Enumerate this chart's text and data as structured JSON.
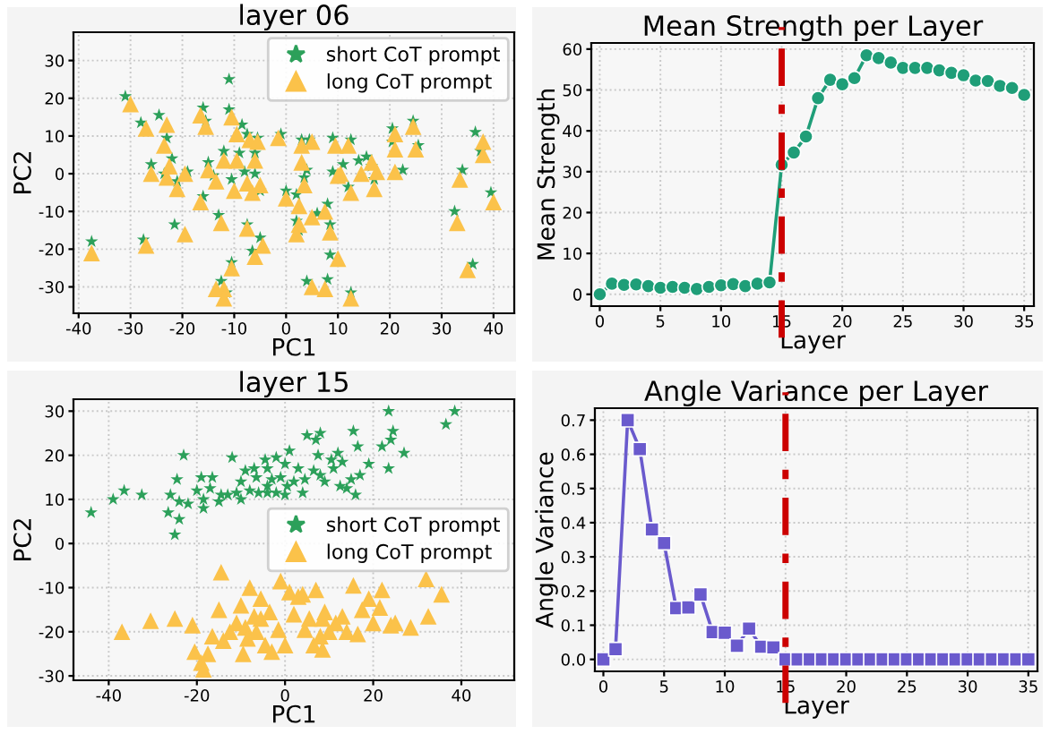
{
  "chart_data": [
    {
      "type": "scatter",
      "title": "layer 06",
      "xlabel": "PC1",
      "ylabel": "PC2",
      "xlim": [
        -41,
        44
      ],
      "ylim": [
        -37,
        37.5
      ],
      "xticks": [
        -40,
        -30,
        -20,
        -10,
        0,
        10,
        20,
        30,
        40
      ],
      "yticks": [
        -30,
        -20,
        -10,
        0,
        10,
        20,
        30
      ],
      "grid": true,
      "legend": "top right",
      "series": [
        {
          "name": "short CoT prompt",
          "color": "#2ca05a",
          "marker": "star",
          "x": [
            -37.5,
            -31,
            -28,
            -24.5,
            -23,
            -26,
            -22,
            -23.5,
            -21,
            -19,
            -16,
            -15.5,
            -15,
            -14,
            -16,
            -13,
            -12,
            -11,
            -9,
            -8.5,
            -7.5,
            -8,
            -10.5,
            -6,
            -5.5,
            -6,
            -5,
            -7.5,
            -5,
            -6.5,
            -10.5,
            -11,
            -12.5,
            -11.5,
            -1,
            0,
            3,
            2,
            3.5,
            4,
            4.5,
            2,
            2.5,
            6,
            4,
            8,
            8.5,
            8.5,
            8,
            9,
            9,
            11,
            12.5,
            12,
            12.5,
            14,
            15.5,
            17,
            16.5,
            20.5,
            20.5,
            22.5,
            24.5,
            25.5,
            32.5,
            34,
            36,
            36.5,
            37.5,
            39.5,
            -27.5,
            -21.5
          ],
          "values": [
            -18,
            20.5,
            13.5,
            15.5,
            9.5,
            2.5,
            4,
            0,
            -2,
            0.5,
            17.5,
            14,
            3,
            -0.5,
            -6,
            -11,
            6,
            17,
            5.5,
            13,
            10.5,
            0.5,
            -1.5,
            5.5,
            9.5,
            0,
            -4.5,
            -13.5,
            -17,
            -20.5,
            -23.5,
            25,
            -28.5,
            -31.5,
            10.5,
            -4.5,
            9,
            -5.5,
            -1,
            1,
            9,
            -12.5,
            -15,
            -10.5,
            -28.5,
            -8,
            -13.5,
            -21.5,
            -28,
            0.5,
            9.5,
            2.5,
            9,
            -3.5,
            -31.5,
            3.5,
            4.5,
            -1.5,
            2,
            12,
            8.5,
            1,
            14,
            7.5,
            -10,
            1,
            -24,
            11,
            6,
            -5,
            -17.5,
            -13.5
          ]
        },
        {
          "name": "long CoT prompt",
          "color": "#fbc24a",
          "marker": "triangle",
          "x": [
            -37.5,
            -30,
            -27,
            -23,
            -23.5,
            -26,
            -22.5,
            -23,
            -21,
            -19.5,
            -16.5,
            -15.5,
            -15,
            -13.5,
            -16.5,
            -12.5,
            -12,
            -10.5,
            -9.5,
            -9.5,
            -7,
            -7.5,
            -10,
            -6,
            -5.5,
            -6.5,
            -5,
            -7.5,
            -4.5,
            -6,
            -10.5,
            -12,
            -13.5,
            -12,
            -1.5,
            0,
            3,
            2.5,
            3.5,
            3,
            5,
            2.5,
            2,
            5,
            5,
            7.5,
            8.5,
            10,
            7.5,
            10,
            9.5,
            10.5,
            12,
            12.5,
            12.5,
            14.5,
            16.5,
            17,
            17.5,
            21,
            21,
            21,
            24.5,
            25,
            33,
            33.5,
            35,
            38,
            38,
            40,
            -27,
            -19.5
          ],
          "values": [
            -21,
            18.5,
            12,
            13,
            7.5,
            0,
            2,
            -1,
            -4,
            0,
            15.5,
            12.5,
            1,
            -2,
            -7.5,
            -13,
            3.5,
            15,
            3.5,
            10.5,
            9,
            -2.5,
            -4.5,
            3.5,
            8.5,
            -5,
            -3,
            -14.5,
            -19,
            -22,
            -25,
            -30.5,
            -30.5,
            -33,
            9.5,
            -6.5,
            7.5,
            -8.5,
            -3,
            3,
            8.5,
            -13.5,
            -16,
            -11.5,
            -30,
            -10,
            -15.5,
            -22.5,
            -30.5,
            -0.5,
            7.5,
            0,
            7.5,
            -5,
            -33,
            0,
            3,
            -4,
            0.5,
            10.5,
            6.5,
            0.5,
            12.5,
            6.5,
            -13,
            -1.5,
            -25.5,
            8.5,
            5,
            -7.5,
            -19,
            -16
          ]
        }
      ]
    },
    {
      "type": "line",
      "title": "Mean Strength per Layer",
      "xlabel": "Layer",
      "ylabel": "Mean Strength",
      "xlim": [
        -0.7,
        35.8
      ],
      "ylim": [
        -2.9,
        61.5
      ],
      "xticks": [
        0,
        5,
        10,
        15,
        20,
        25,
        30,
        35
      ],
      "yticks": [
        0,
        10,
        20,
        30,
        40,
        50,
        60
      ],
      "grid": true,
      "marker": "circle",
      "line_style": "solid",
      "x": [
        0,
        1,
        2,
        3,
        4,
        5,
        6,
        7,
        8,
        9,
        10,
        11,
        12,
        13,
        14,
        15,
        16,
        17,
        18,
        19,
        20,
        21,
        22,
        23,
        24,
        25,
        26,
        27,
        28,
        29,
        30,
        31,
        32,
        33,
        34,
        35
      ],
      "series": [
        {
          "color": "#1f9e78",
          "values": [
            0,
            2.6,
            2.3,
            2.4,
            2,
            1.6,
            1.8,
            1.6,
            1.3,
            1.8,
            2.2,
            2.5,
            2,
            2.6,
            2.9,
            31.7,
            34.7,
            38.6,
            48,
            52.5,
            51.4,
            52.9,
            58.5,
            57.8,
            56.7,
            55.4,
            55.4,
            55.4,
            54.8,
            54.2,
            53.6,
            52.3,
            52.2,
            51,
            50.5,
            48.8
          ]
        }
      ],
      "ref_lines": [
        {
          "axis": "x",
          "value": 15,
          "color": "#cc0000",
          "line_style": "dashdot"
        }
      ]
    },
    {
      "type": "scatter",
      "title": "layer 15",
      "xlabel": "PC1",
      "ylabel": "PC2",
      "xlim": [
        -48,
        52
      ],
      "ylim": [
        -31,
        32.7
      ],
      "xticks": [
        -40,
        -20,
        0,
        20,
        40
      ],
      "yticks": [
        -30,
        -20,
        -10,
        0,
        10,
        20,
        30
      ],
      "grid": true,
      "legend": "right",
      "series": [
        {
          "name": "short CoT prompt",
          "color": "#2ca05a",
          "marker": "star",
          "x": [
            -44,
            -39,
            -36.5,
            -32.5,
            -26.5,
            -26,
            -25,
            -24.5,
            -24,
            -24,
            -23,
            -22,
            -20,
            -19,
            -18.5,
            -18.5,
            -17,
            -16.5,
            -15,
            -14.5,
            -13,
            -12,
            -11,
            -10,
            -10,
            -9,
            -8,
            -7,
            -6.5,
            -6,
            -4.5,
            -4,
            -4,
            -4,
            -3,
            -2,
            -2,
            -1,
            0,
            1,
            0.5,
            0,
            2,
            3,
            4,
            4.5,
            5,
            6.5,
            7,
            7.5,
            8,
            8,
            9,
            10.5,
            11,
            12,
            12.5,
            13,
            14,
            15,
            15.5,
            16,
            16.5,
            17,
            19,
            22,
            23.5,
            23.5,
            24,
            24.5,
            27,
            36.5,
            38.5
          ],
          "values": [
            7,
            10,
            12,
            11,
            7,
            11,
            2,
            14.5,
            9.5,
            5.5,
            20,
            9,
            12,
            15,
            10,
            8,
            12.5,
            15,
            9.5,
            11,
            11,
            19.5,
            11.5,
            14,
            10,
            16.5,
            12,
            17,
            15,
            11.5,
            19,
            17,
            13,
            11.5,
            14.5,
            19.5,
            11.5,
            15,
            18,
            21,
            13,
            11,
            14,
            17,
            11.5,
            14.5,
            24.5,
            16.5,
            23.5,
            20,
            25,
            15.5,
            14,
            19,
            17,
            20.5,
            13,
            18.5,
            12.5,
            14.5,
            25.5,
            11,
            22,
            15.5,
            18,
            22,
            30,
            17,
            23.5,
            25.5,
            20.5,
            27,
            30
          ]
        },
        {
          "name": "long CoT prompt",
          "color": "#fbc24a",
          "marker": "triangle",
          "x": [
            -37,
            -30.5,
            -25,
            -21,
            -20.5,
            -19,
            -18.5,
            -17.5,
            -16.5,
            -15,
            -14.5,
            -14,
            -12.5,
            -11,
            -10,
            -9,
            -8.5,
            -8,
            -9.5,
            -7,
            -6.5,
            -5.5,
            -5.5,
            -4.5,
            -3,
            -3.5,
            -1.5,
            -1,
            0,
            1,
            2,
            3,
            4,
            4.5,
            5.5,
            6.5,
            7,
            8,
            8.5,
            8.5,
            9,
            10,
            11.5,
            13,
            14,
            15.5,
            16.5,
            17.5,
            19,
            20,
            21.5,
            22,
            24,
            25,
            28.5,
            30.5,
            32.5,
            32,
            35.5
          ],
          "values": [
            -20,
            -17.5,
            -17,
            -18.5,
            -24.5,
            -27,
            -28.5,
            -25,
            -21,
            -15,
            -6.5,
            -22,
            -20,
            -18,
            -14,
            -19,
            -21.5,
            -10,
            -25,
            -16.5,
            -20,
            -12.5,
            -17,
            -23,
            -24.5,
            -15.5,
            -19.5,
            -8.5,
            -23,
            -11,
            -16,
            -12,
            -11.5,
            -19.5,
            -17,
            -23,
            -10.5,
            -21,
            -24,
            -17,
            -15.5,
            -20,
            -18,
            -16.5,
            -20,
            -9.5,
            -20.5,
            -15,
            -12.5,
            -18,
            -14.5,
            -10.5,
            -18.5,
            -18,
            -19,
            null,
            -16.5,
            -8,
            -11.5
          ]
        }
      ]
    },
    {
      "type": "line",
      "title": "Angle Variance per Layer",
      "xlabel": "Layer",
      "ylabel": "Angle Variance",
      "xlim": [
        -0.7,
        35.75
      ],
      "ylim": [
        -0.035,
        0.735
      ],
      "xticks": [
        0,
        5,
        10,
        15,
        20,
        25,
        30,
        35
      ],
      "yticks": [
        {
          "value": 0,
          "label": "0.0"
        },
        0.1,
        0.2,
        0.3,
        0.4,
        0.5,
        0.6,
        0.7
      ],
      "grid": true,
      "marker": "square",
      "line_style": "solid",
      "x": [
        0,
        1,
        2,
        3,
        4,
        5,
        6,
        7,
        8,
        9,
        10,
        11,
        12,
        13,
        14,
        15,
        16,
        17,
        18,
        19,
        20,
        21,
        22,
        23,
        24,
        25,
        26,
        27,
        28,
        29,
        30,
        31,
        32,
        33,
        34,
        35
      ],
      "series": [
        {
          "color": "#6a5acd",
          "values": [
            0,
            0.03,
            0.7,
            0.615,
            0.38,
            0.34,
            0.15,
            0.152,
            0.19,
            0.08,
            0.078,
            0.04,
            0.09,
            0.037,
            0.035,
            0,
            0,
            0,
            0,
            0,
            0,
            0,
            0,
            0,
            0,
            0,
            0,
            0,
            0,
            0,
            0,
            0,
            0,
            0,
            0,
            0
          ]
        }
      ],
      "ref_lines": [
        {
          "axis": "x",
          "value": 15,
          "color": "#cc0000",
          "line_style": "dashdot"
        }
      ]
    }
  ]
}
